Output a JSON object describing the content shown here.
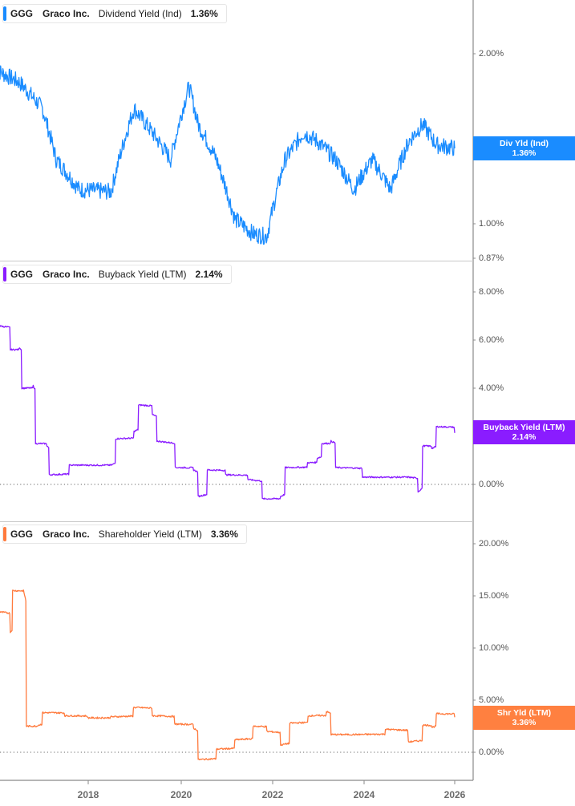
{
  "chart_data": [
    {
      "type": "line",
      "title": "GGG Graco Inc. Dividend Yield (Ind)",
      "legend": {
        "ticker": "GGG",
        "company": "Graco Inc.",
        "metric": "Dividend Yield (Ind)",
        "value": "1.36%"
      },
      "color": "#1a8cff",
      "y_scale": "log",
      "yticks": [
        "2.00%",
        "1.00%",
        "0.87%"
      ],
      "ylim": [
        0.87,
        2.4
      ],
      "tag": {
        "label": "Div Yld (Ind)",
        "value": "1.36%"
      },
      "x": [
        2016.0,
        2016.5,
        2017.0,
        2017.3,
        2017.8,
        2018.5,
        2019.0,
        2019.4,
        2019.8,
        2020.2,
        2020.4,
        2020.8,
        2021.2,
        2021.6,
        2021.9,
        2022.3,
        2022.7,
        2023.0,
        2023.4,
        2023.8,
        2024.2,
        2024.6,
        2025.0,
        2025.3,
        2025.6,
        2026.0
      ],
      "values": [
        1.87,
        1.78,
        1.6,
        1.3,
        1.15,
        1.14,
        1.6,
        1.45,
        1.3,
        1.75,
        1.5,
        1.3,
        1.02,
        0.96,
        0.95,
        1.3,
        1.45,
        1.4,
        1.3,
        1.15,
        1.3,
        1.15,
        1.4,
        1.5,
        1.38,
        1.36
      ],
      "grid": false
    },
    {
      "type": "line",
      "title": "GGG Graco Inc. Buyback Yield (LTM)",
      "legend": {
        "ticker": "GGG",
        "company": "Graco Inc.",
        "metric": "Buyback Yield (LTM)",
        "value": "2.14%"
      },
      "color": "#8a1cff",
      "yticks": [
        "8.00%",
        "6.00%",
        "4.00%",
        "2.00%",
        "0.00%"
      ],
      "ylim": [
        -1.0,
        8.5
      ],
      "tag": {
        "label": "Buyback Yield (LTM)",
        "value": "2.14%"
      },
      "x": [
        2016.0,
        2016.3,
        2016.5,
        2016.55,
        2016.8,
        2016.85,
        2017.1,
        2017.15,
        2017.6,
        2018.5,
        2018.6,
        2019.0,
        2019.1,
        2019.4,
        2019.5,
        2019.9,
        2020.3,
        2020.4,
        2020.6,
        2021.0,
        2021.5,
        2021.8,
        2022.2,
        2022.3,
        2022.8,
        2023.0,
        2023.1,
        2023.3,
        2023.4,
        2024.0,
        2025.0,
        2025.2,
        2025.3,
        2025.5,
        2025.6,
        2026.0
      ],
      "values": [
        6.6,
        5.6,
        5.7,
        4.0,
        4.1,
        1.7,
        1.6,
        0.4,
        0.8,
        0.8,
        1.9,
        2.2,
        3.3,
        2.9,
        1.8,
        0.7,
        0.6,
        -0.5,
        0.6,
        0.4,
        0.2,
        -0.6,
        -0.5,
        0.7,
        0.9,
        1.1,
        1.7,
        1.8,
        0.7,
        0.3,
        0.3,
        -0.3,
        1.6,
        1.5,
        2.4,
        2.14
      ],
      "grid": false,
      "zero_line": true
    },
    {
      "type": "line",
      "title": "GGG Graco Inc. Shareholder Yield (LTM)",
      "legend": {
        "ticker": "GGG",
        "company": "Graco Inc.",
        "metric": "Shareholder Yield (LTM)",
        "value": "3.36%"
      },
      "color": "#ff7a3d",
      "yticks": [
        "20.00%",
        "15.00%",
        "10.00%",
        "5.00%",
        "0.00%"
      ],
      "ylim": [
        -2.5,
        22.5
      ],
      "tag": {
        "label": "Shr Yld (LTM)",
        "value": "3.36%"
      },
      "x": [
        2016.0,
        2016.3,
        2016.35,
        2016.6,
        2016.65,
        2016.9,
        2017.0,
        2017.5,
        2018.0,
        2018.5,
        2019.0,
        2019.4,
        2019.9,
        2020.3,
        2020.4,
        2020.8,
        2021.2,
        2021.6,
        2021.9,
        2022.2,
        2022.4,
        2022.8,
        2023.2,
        2023.3,
        2023.8,
        2024.5,
        2025.0,
        2025.3,
        2025.5,
        2025.6,
        2026.0
      ],
      "values": [
        13.5,
        11.5,
        15.5,
        15.3,
        2.5,
        2.6,
        3.8,
        3.5,
        3.3,
        3.4,
        4.3,
        3.5,
        2.7,
        2.3,
        -0.7,
        0.3,
        1.2,
        2.5,
        2.0,
        0.7,
        2.8,
        3.5,
        3.9,
        1.7,
        1.7,
        2.2,
        1.0,
        2.6,
        2.4,
        3.7,
        3.36
      ],
      "grid": false,
      "zero_line": true
    }
  ],
  "xaxis": {
    "ticks": [
      "2018",
      "2020",
      "2022",
      "2024",
      "2026"
    ]
  }
}
